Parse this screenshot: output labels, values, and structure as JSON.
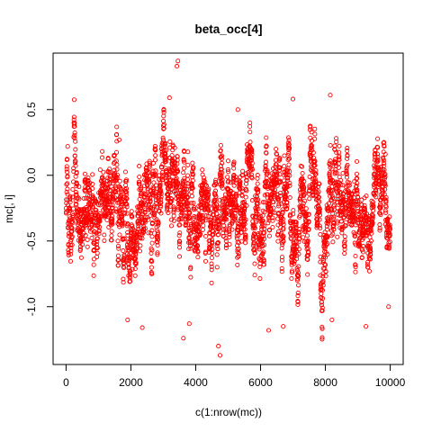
{
  "chart_data": {
    "type": "scatter",
    "title": "beta_occ[4]",
    "xlabel": "c(1:nrow(mc))",
    "ylabel": "mc[, i]",
    "xlim": [
      -400,
      10400
    ],
    "ylim": [
      -1.44,
      0.93
    ],
    "xticks": [
      {
        "value": 0,
        "label": "0"
      },
      {
        "value": 2000,
        "label": "2000"
      },
      {
        "value": 4000,
        "label": "4000"
      },
      {
        "value": 6000,
        "label": "6000"
      },
      {
        "value": 8000,
        "label": "8000"
      },
      {
        "value": 10000,
        "label": "10000"
      }
    ],
    "yticks": [
      {
        "value": -1.0,
        "label": "-1.0"
      },
      {
        "value": -0.5,
        "label": "-0.5"
      },
      {
        "value": 0.0,
        "label": "0.0"
      },
      {
        "value": 0.5,
        "label": "0.5"
      }
    ],
    "marker": "open-circle",
    "color": "#ff0000",
    "grid": false,
    "legend": "none",
    "n_points": 10000,
    "summary": {
      "mean": -0.25,
      "min": -1.37,
      "max": 0.87
    },
    "notable_points": [
      {
        "x": 3450,
        "y": 0.87
      },
      {
        "x": 3420,
        "y": 0.83
      },
      {
        "x": 3190,
        "y": 0.59
      },
      {
        "x": 7000,
        "y": 0.58
      },
      {
        "x": 8150,
        "y": 0.61
      },
      {
        "x": 5300,
        "y": 0.5
      },
      {
        "x": 4750,
        "y": -1.37
      },
      {
        "x": 4700,
        "y": -1.3
      },
      {
        "x": 3620,
        "y": -1.24
      },
      {
        "x": 9250,
        "y": -1.15
      },
      {
        "x": 2350,
        "y": -1.16
      },
      {
        "x": 6250,
        "y": -1.18
      },
      {
        "x": 1900,
        "y": -1.1
      },
      {
        "x": 3800,
        "y": -1.13
      },
      {
        "x": 6700,
        "y": -1.15
      },
      {
        "x": 8200,
        "y": -1.1
      },
      {
        "x": 9950,
        "y": -1.0
      },
      {
        "x": 50,
        "y": 0.22
      },
      {
        "x": 1640,
        "y": 0.27
      },
      {
        "x": 9850,
        "y": 0.16
      }
    ]
  }
}
